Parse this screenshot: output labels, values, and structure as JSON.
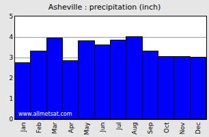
{
  "chart_data": {
    "type": "bar",
    "title": "Asheville : precipitation (inch)",
    "categories": [
      "Jan",
      "Feb",
      "Mar",
      "Apr",
      "May",
      "Jun",
      "Jul",
      "Aug",
      "Sep",
      "Oct",
      "Nov",
      "Dec"
    ],
    "values": [
      2.75,
      3.3,
      3.95,
      2.85,
      3.8,
      3.6,
      3.85,
      4.0,
      3.3,
      3.05,
      3.05,
      3.0
    ],
    "color": "#0000ff",
    "ylim": [
      0,
      5
    ],
    "yticks": [
      0,
      1,
      2,
      3,
      4,
      5
    ],
    "grid": true,
    "annotations": [
      "www.allmetsat.com"
    ]
  }
}
